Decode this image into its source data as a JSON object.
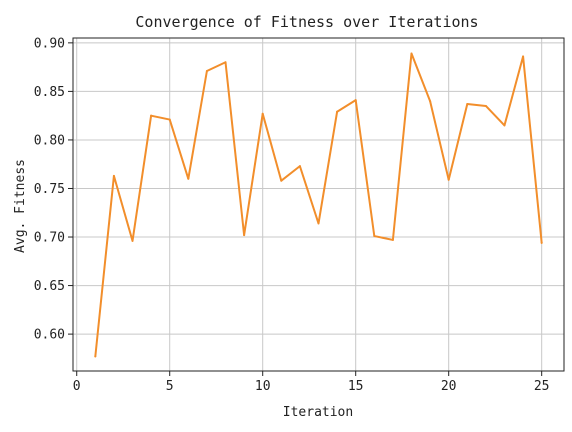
{
  "chart_data": {
    "type": "line",
    "title": "Convergence of Fitness over Iterations",
    "xlabel": "Iteration",
    "ylabel": "Avg. Fitness",
    "xlim": [
      -0.2,
      26.2
    ],
    "ylim": [
      0.562,
      0.905
    ],
    "xticks": [
      0,
      5,
      10,
      15,
      20,
      25
    ],
    "yticks": [
      0.6,
      0.65,
      0.7,
      0.75,
      0.8,
      0.85,
      0.9
    ],
    "grid": true,
    "color": "#f28e2b",
    "x": [
      1,
      2,
      3,
      4,
      5,
      6,
      7,
      8,
      9,
      10,
      11,
      12,
      13,
      14,
      15,
      16,
      17,
      18,
      19,
      20,
      21,
      22,
      23,
      24,
      25
    ],
    "series": [
      {
        "values": [
          0.577,
          0.763,
          0.696,
          0.825,
          0.821,
          0.76,
          0.871,
          0.88,
          0.702,
          0.827,
          0.758,
          0.773,
          0.714,
          0.829,
          0.841,
          0.701,
          0.697,
          0.889,
          0.84,
          0.759,
          0.837,
          0.835,
          0.815,
          0.886,
          0.694
        ]
      }
    ]
  }
}
